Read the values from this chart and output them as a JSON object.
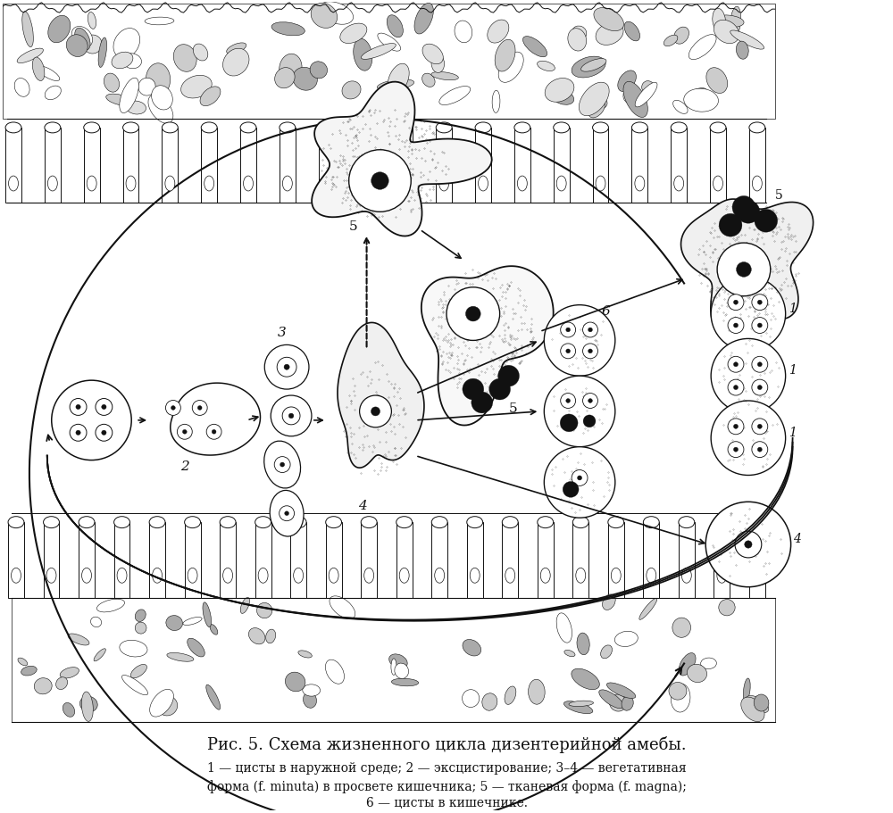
{
  "title": "Рис. 5. Схема жизненного цикла дизентерийной амебы.",
  "caption_line1": "1 — цисты в наружной среде; 2 — эксцистирование; 3–4 — вегетативная",
  "caption_line2": "форма (f. minuta) в просвете кишечника; 5 — тканевая форма (f. magna);",
  "caption_line3": "6 — цисты в кишечнике.",
  "bg_color": "#ffffff",
  "ink_color": "#111111"
}
